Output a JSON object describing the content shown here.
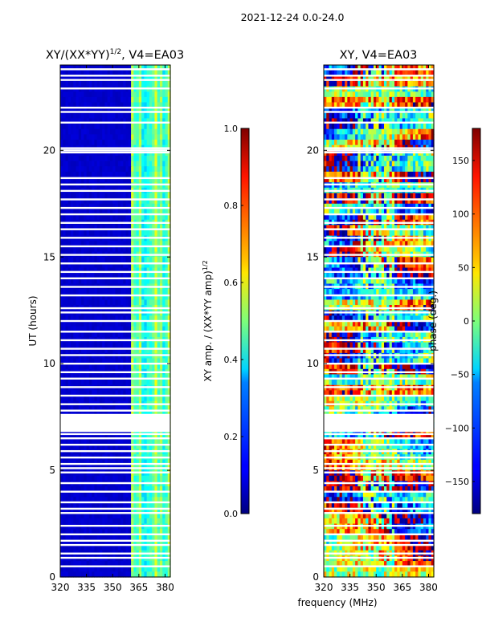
{
  "suptitle": "2021-12-24 0.0-24.0",
  "chart_data": [
    {
      "type": "heatmap",
      "title_main": "XY/(XX*YY)",
      "title_sup": "1/2",
      "title_rest": ", V4=EA03",
      "xlabel": "",
      "ylabel": "UT (hours)",
      "xlim": [
        320,
        383
      ],
      "ylim": [
        0,
        24
      ],
      "xticks": [
        320,
        335,
        350,
        365,
        380
      ],
      "yticks": [
        0,
        5,
        10,
        15,
        20
      ],
      "colorbar": {
        "label_main": "XY amp. / (XX*YY amp)",
        "label_sup": "1/2",
        "range": [
          0.0,
          1.0
        ],
        "ticks": [
          "0.0",
          "0.2",
          "0.4",
          "0.6",
          "0.8",
          "1.0"
        ],
        "tick_values": [
          0.0,
          0.2,
          0.4,
          0.6,
          0.8,
          1.0
        ],
        "colormap": "jet"
      },
      "description": "Low normalized amplitude (~0.05) for 320-361 MHz; elevated values (0.3-0.6) in striped channels 361-383 MHz"
    },
    {
      "type": "heatmap",
      "title_main": "XY, V4=EA03",
      "xlabel": "frequency (MHz)",
      "ylabel": "",
      "xlim": [
        320,
        383
      ],
      "ylim": [
        0,
        24
      ],
      "xticks": [
        320,
        335,
        350,
        365,
        380
      ],
      "yticks": [
        0,
        5,
        10,
        15,
        20
      ],
      "colorbar": {
        "label_main": "phase (deg.)",
        "range": [
          -180,
          180
        ],
        "ticks": [
          "−150",
          "−100",
          "−50",
          "0",
          "50",
          "100",
          "150"
        ],
        "tick_values": [
          -150,
          -100,
          -50,
          0,
          50,
          100,
          150
        ],
        "colormap": "jet"
      },
      "description": "Phase varies widely across the band (-180 to 180 deg) with blocky structure"
    }
  ],
  "flagged_hours": [
    0.5,
    0.9,
    1.1,
    1.5,
    1.7,
    2.0,
    2.4,
    3.0,
    3.2,
    3.5,
    4.0,
    4.4,
    4.9,
    5.1,
    5.3,
    5.6,
    5.9,
    6.2,
    6.5,
    6.7,
    7.0,
    7.2,
    7.4,
    7.6,
    7.8,
    8.1,
    8.5,
    8.9,
    9.3,
    9.6,
    10.0,
    10.4,
    10.7,
    11.1,
    11.5,
    12.0,
    12.4,
    12.6,
    13.2,
    13.6,
    14.0,
    14.3,
    14.7,
    15.1,
    15.5,
    15.9,
    16.3,
    16.6,
    17.0,
    17.3,
    17.7,
    18.1,
    18.4,
    18.7,
    19.9,
    20.0,
    20.1,
    21.3,
    21.8,
    22.0,
    22.9,
    23.3,
    23.5,
    23.8
  ]
}
